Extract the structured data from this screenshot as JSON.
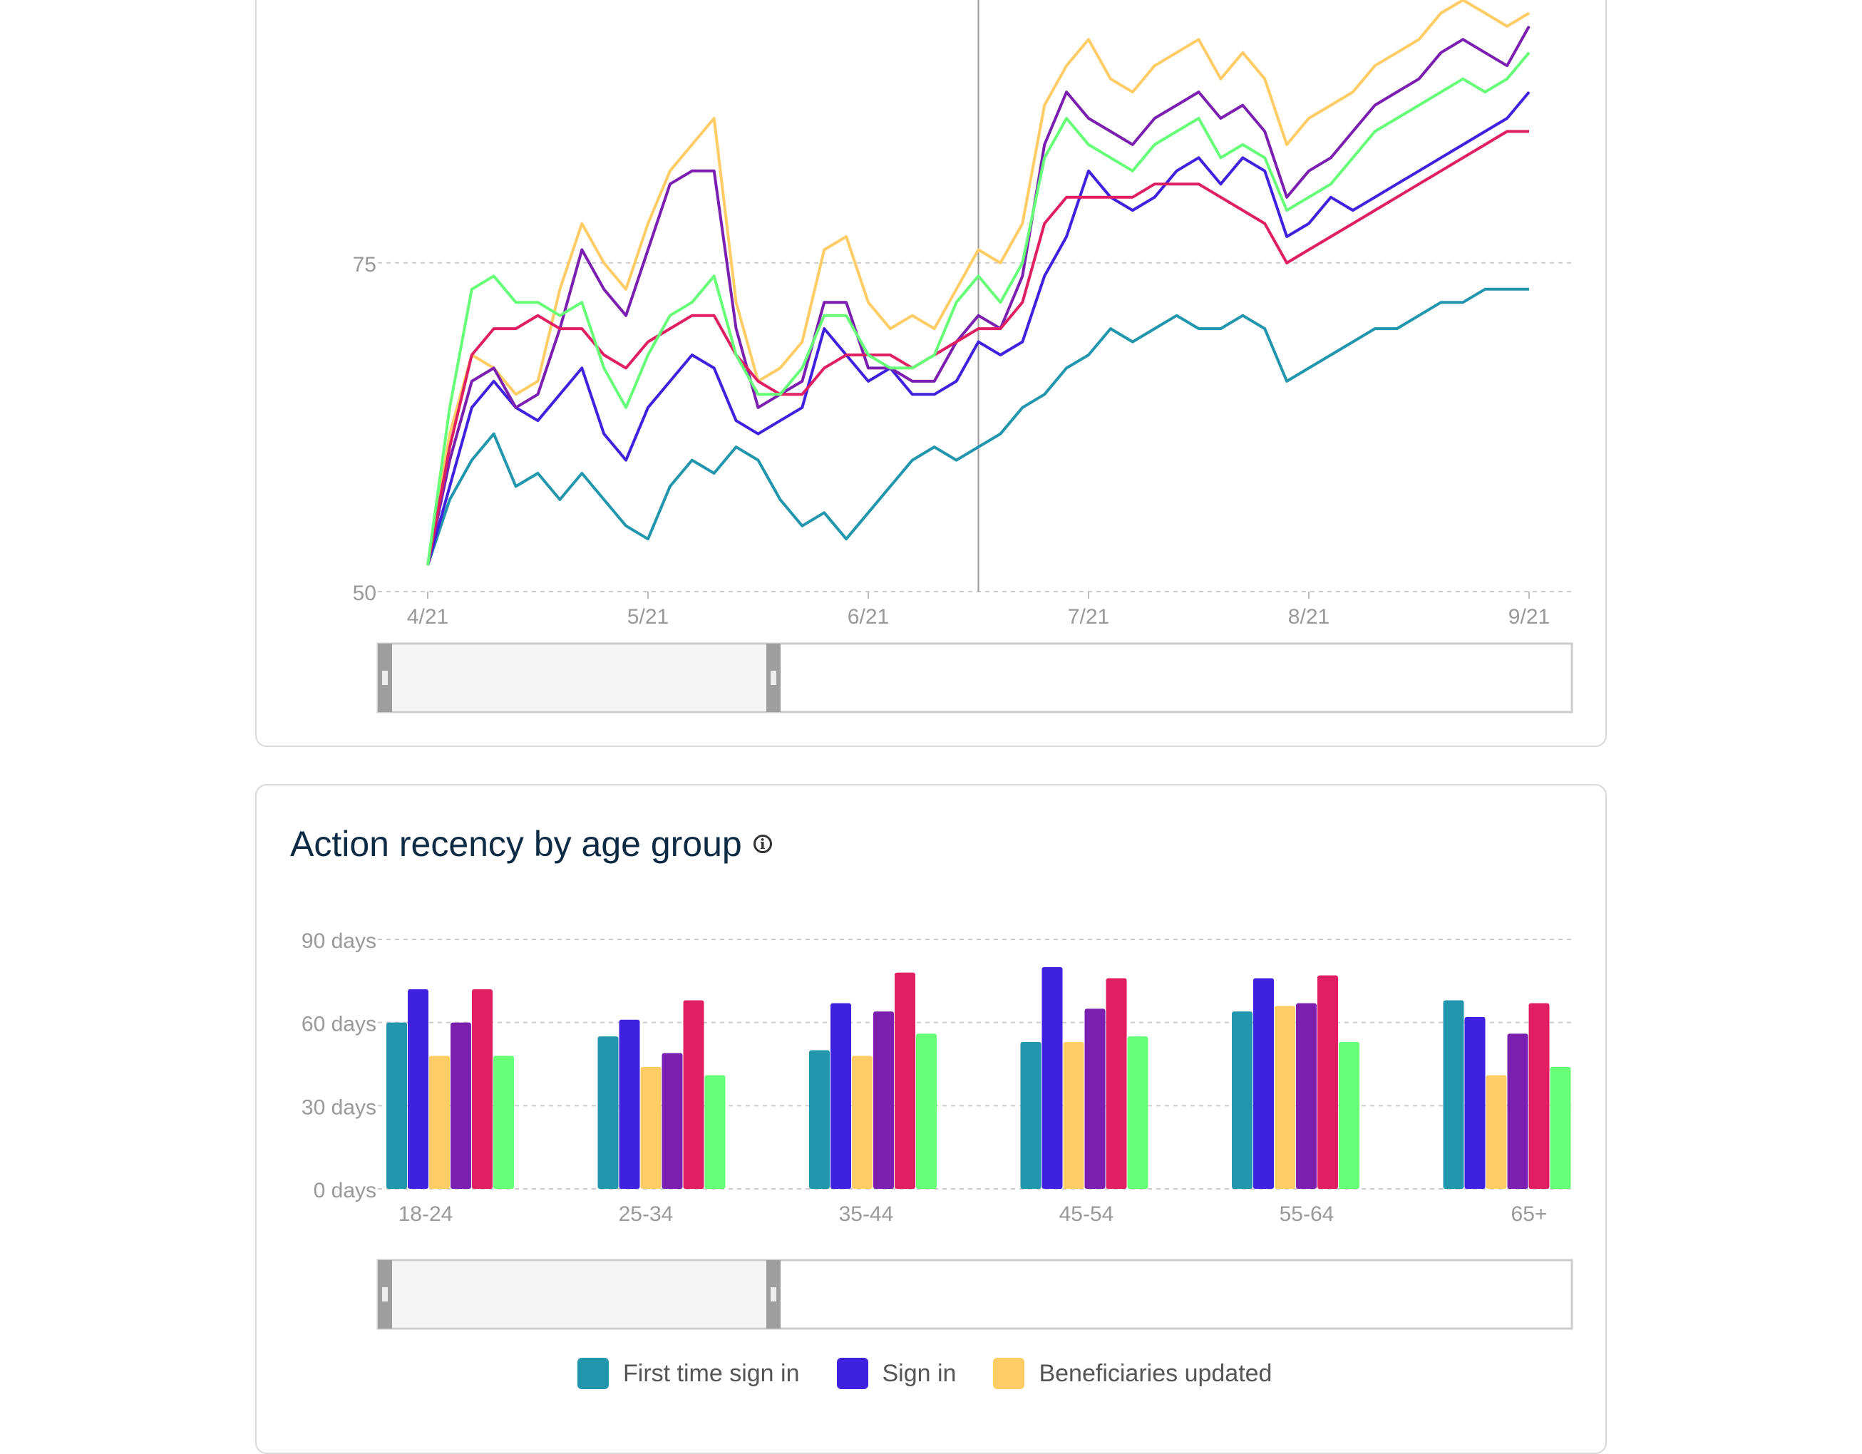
{
  "colors": {
    "first_time_sign_in": "#2196AC",
    "sign_in": "#3F22E0",
    "beneficiaries_updated": "#FFCC66",
    "series_purple": "#7B1FB0",
    "series_crimson": "#E01F63",
    "series_green": "#66FF77",
    "gridline": "#cccccc",
    "cursor": "#999999",
    "title": "#0d2b45"
  },
  "bar_card": {
    "title": "Action recency by age group",
    "info_icon": "info-circle-icon"
  },
  "legend": [
    {
      "label": "First time sign in",
      "color": "#2196AC"
    },
    {
      "label": "Sign in",
      "color": "#3F22E0"
    },
    {
      "label": "Beneficiaries updated",
      "color": "#FFCC66"
    }
  ],
  "chart_data": [
    {
      "type": "line",
      "x_tick_labels": [
        "4/21",
        "5/21",
        "6/21",
        "7/21",
        "8/21",
        "9/21"
      ],
      "y_tick_labels": [
        "50",
        "75"
      ],
      "ylim": [
        50,
        95
      ],
      "xlim_days": [
        0,
        150
      ],
      "cursor_x_day": 75,
      "grid": true,
      "series": [
        {
          "color": "#2196AC",
          "x_days": [
            0,
            3,
            6,
            9,
            12,
            15,
            18,
            21,
            24,
            27,
            30,
            33,
            36,
            39,
            42,
            45,
            48,
            51,
            54,
            57,
            60,
            63,
            66,
            69,
            72,
            75,
            78,
            81,
            84,
            87,
            90,
            93,
            96,
            99,
            102,
            105,
            108,
            111,
            114,
            117,
            120,
            123,
            126,
            129,
            132,
            135,
            138,
            141,
            144,
            147,
            150
          ],
          "values": [
            52,
            57,
            60,
            62,
            58,
            59,
            57,
            59,
            57,
            55,
            54,
            58,
            60,
            59,
            61,
            60,
            57,
            55,
            56,
            54,
            56,
            58,
            60,
            61,
            60,
            61,
            62,
            64,
            65,
            67,
            68,
            70,
            69,
            70,
            71,
            70,
            70,
            71,
            70,
            66,
            67,
            68,
            69,
            70,
            70,
            71,
            72,
            72,
            73,
            73,
            73
          ]
        },
        {
          "color": "#3F22E0",
          "x_days": [
            0,
            3,
            6,
            9,
            12,
            15,
            18,
            21,
            24,
            27,
            30,
            33,
            36,
            39,
            42,
            45,
            48,
            51,
            54,
            57,
            60,
            63,
            66,
            69,
            72,
            75,
            78,
            81,
            84,
            87,
            90,
            93,
            96,
            99,
            102,
            105,
            108,
            111,
            114,
            117,
            120,
            123,
            126,
            129,
            132,
            135,
            138,
            141,
            144,
            147,
            150
          ],
          "values": [
            52,
            58,
            64,
            66,
            64,
            63,
            65,
            67,
            62,
            60,
            64,
            66,
            68,
            67,
            63,
            62,
            63,
            64,
            70,
            68,
            66,
            67,
            65,
            65,
            66,
            69,
            68,
            69,
            74,
            77,
            82,
            80,
            79,
            80,
            82,
            83,
            81,
            83,
            82,
            77,
            78,
            80,
            79,
            80,
            81,
            82,
            83,
            84,
            85,
            86,
            88
          ]
        },
        {
          "color": "#FFCC66",
          "x_days": [
            0,
            3,
            6,
            9,
            12,
            15,
            18,
            21,
            24,
            27,
            30,
            33,
            36,
            39,
            42,
            45,
            48,
            51,
            54,
            57,
            60,
            63,
            66,
            69,
            72,
            75,
            78,
            81,
            84,
            87,
            90,
            93,
            96,
            99,
            102,
            105,
            108,
            111,
            114,
            117,
            120,
            123,
            126,
            129,
            132,
            135,
            138,
            141,
            144,
            147,
            150
          ],
          "values": [
            52,
            62,
            68,
            67,
            65,
            66,
            73,
            78,
            75,
            73,
            78,
            82,
            84,
            86,
            72,
            66,
            67,
            69,
            76,
            77,
            72,
            70,
            71,
            70,
            73,
            76,
            75,
            78,
            87,
            90,
            92,
            89,
            88,
            90,
            91,
            92,
            89,
            91,
            89,
            84,
            86,
            87,
            88,
            90,
            91,
            92,
            94,
            95,
            94,
            93,
            94
          ]
        },
        {
          "color": "#7B1FB0",
          "x_days": [
            0,
            3,
            6,
            9,
            12,
            15,
            18,
            21,
            24,
            27,
            30,
            33,
            36,
            39,
            42,
            45,
            48,
            51,
            54,
            57,
            60,
            63,
            66,
            69,
            72,
            75,
            78,
            81,
            84,
            87,
            90,
            93,
            96,
            99,
            102,
            105,
            108,
            111,
            114,
            117,
            120,
            123,
            126,
            129,
            132,
            135,
            138,
            141,
            144,
            147,
            150
          ],
          "values": [
            52,
            60,
            66,
            67,
            64,
            65,
            70,
            76,
            73,
            71,
            76,
            81,
            82,
            82,
            70,
            64,
            65,
            66,
            72,
            72,
            67,
            67,
            66,
            66,
            69,
            71,
            70,
            74,
            84,
            88,
            86,
            85,
            84,
            86,
            87,
            88,
            86,
            87,
            85,
            80,
            82,
            83,
            85,
            87,
            88,
            89,
            91,
            92,
            91,
            90,
            93
          ]
        },
        {
          "color": "#E01F63",
          "x_days": [
            0,
            3,
            6,
            9,
            12,
            15,
            18,
            21,
            24,
            27,
            30,
            33,
            36,
            39,
            42,
            45,
            48,
            51,
            54,
            57,
            60,
            63,
            66,
            69,
            72,
            75,
            78,
            81,
            84,
            87,
            90,
            93,
            96,
            99,
            102,
            105,
            108,
            111,
            114,
            117,
            120,
            123,
            126,
            129,
            132,
            135,
            138,
            141,
            144,
            147,
            150
          ],
          "values": [
            52,
            61,
            68,
            70,
            70,
            71,
            70,
            70,
            68,
            67,
            69,
            70,
            71,
            71,
            68,
            66,
            65,
            65,
            67,
            68,
            68,
            68,
            67,
            68,
            69,
            70,
            70,
            72,
            78,
            80,
            80,
            80,
            80,
            81,
            81,
            81,
            80,
            79,
            78,
            75,
            76,
            77,
            78,
            79,
            80,
            81,
            82,
            83,
            84,
            85,
            85
          ]
        },
        {
          "color": "#66FF77",
          "x_days": [
            0,
            3,
            6,
            9,
            12,
            15,
            18,
            21,
            24,
            27,
            30,
            33,
            36,
            39,
            42,
            45,
            48,
            51,
            54,
            57,
            60,
            63,
            66,
            69,
            72,
            75,
            78,
            81,
            84,
            87,
            90,
            93,
            96,
            99,
            102,
            105,
            108,
            111,
            114,
            117,
            120,
            123,
            126,
            129,
            132,
            135,
            138,
            141,
            144,
            147,
            150
          ],
          "values": [
            52,
            64,
            73,
            74,
            72,
            72,
            71,
            72,
            67,
            64,
            68,
            71,
            72,
            74,
            68,
            65,
            65,
            67,
            71,
            71,
            68,
            67,
            67,
            68,
            72,
            74,
            72,
            75,
            83,
            86,
            84,
            83,
            82,
            84,
            85,
            86,
            83,
            84,
            83,
            79,
            80,
            81,
            83,
            85,
            86,
            87,
            88,
            89,
            88,
            89,
            91
          ]
        }
      ]
    },
    {
      "type": "bar",
      "title": "Action recency by age group",
      "categories": [
        "18-24",
        "25-34",
        "35-44",
        "45-54",
        "55-64",
        "65+"
      ],
      "y_tick_labels": [
        "0 days",
        "30 days",
        "60 days",
        "90 days"
      ],
      "ylim": [
        0,
        90
      ],
      "grid": true,
      "legend_position": "bottom",
      "series": [
        {
          "name": "First time sign in",
          "color": "#2196AC",
          "values": [
            60,
            55,
            50,
            53,
            64,
            68
          ]
        },
        {
          "name": "Sign in",
          "color": "#3F22E0",
          "values": [
            72,
            61,
            67,
            80,
            76,
            62
          ]
        },
        {
          "name": "Beneficiaries updated",
          "color": "#FFCC66",
          "values": [
            48,
            44,
            48,
            53,
            66,
            41
          ]
        },
        {
          "color": "#7B1FB0",
          "values": [
            60,
            49,
            64,
            65,
            67,
            56
          ]
        },
        {
          "color": "#E01F63",
          "values": [
            72,
            68,
            78,
            76,
            77,
            67
          ]
        },
        {
          "color": "#66FF77",
          "values": [
            48,
            41,
            56,
            55,
            53,
            44
          ]
        }
      ]
    }
  ]
}
